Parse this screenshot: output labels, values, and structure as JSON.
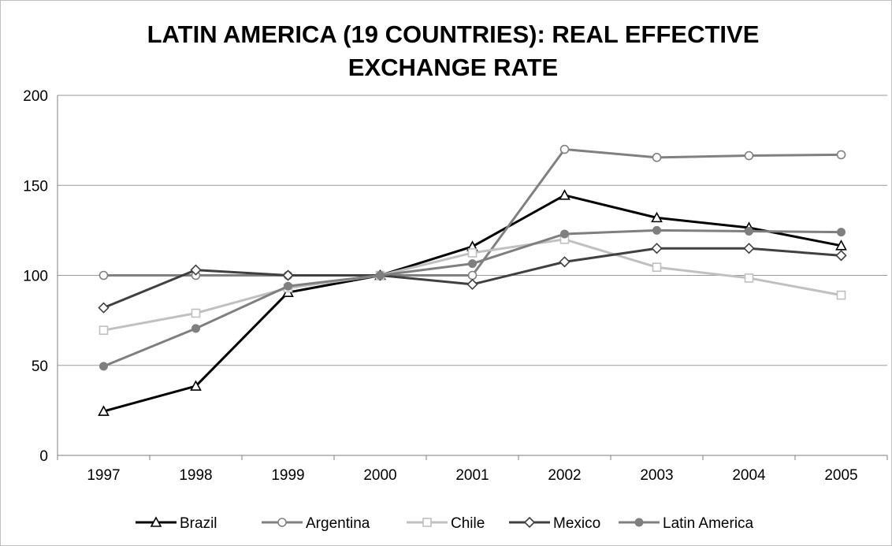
{
  "chart_data": {
    "type": "line",
    "title": "LATIN AMERICA (19 COUNTRIES): REAL EFFECTIVE EXCHANGE RATE",
    "title_lines": [
      "LATIN AMERICA (19 COUNTRIES): REAL EFFECTIVE",
      "EXCHANGE RATE"
    ],
    "categories": [
      "1997",
      "1998",
      "1999",
      "2000",
      "2001",
      "2002",
      "2003",
      "2004",
      "2005"
    ],
    "yticks": [
      "0",
      "50",
      "100",
      "150",
      "200"
    ],
    "ylim": [
      0,
      200
    ],
    "grid": "horizontal",
    "legend_position": "bottom",
    "series": [
      {
        "name": "Brazil",
        "color": "#000000",
        "marker": "triangle",
        "width": 3,
        "values": [
          24.5,
          38.5,
          90.5,
          100,
          116,
          144.5,
          132,
          126.5,
          116.5
        ]
      },
      {
        "name": "Argentina",
        "color": "#808080",
        "marker": "circle-open",
        "width": 3,
        "values": [
          100,
          100,
          100,
          100,
          100,
          170,
          165.5,
          166.5,
          167
        ]
      },
      {
        "name": "Chile",
        "color": "#c0c0c0",
        "marker": "square-open",
        "width": 3,
        "values": [
          69.5,
          79,
          93,
          100,
          112.5,
          120,
          104.5,
          98.5,
          89
        ]
      },
      {
        "name": "Mexico",
        "color": "#404040",
        "marker": "diamond-open",
        "width": 3,
        "values": [
          82,
          103,
          100,
          100,
          95,
          107.5,
          115,
          115,
          111
        ]
      },
      {
        "name": "Latin America",
        "color": "#7f7f7f",
        "marker": "circle-filled",
        "width": 3,
        "values": [
          49.5,
          70.5,
          94,
          100,
          106.5,
          123,
          125,
          124.5,
          124
        ]
      }
    ]
  }
}
